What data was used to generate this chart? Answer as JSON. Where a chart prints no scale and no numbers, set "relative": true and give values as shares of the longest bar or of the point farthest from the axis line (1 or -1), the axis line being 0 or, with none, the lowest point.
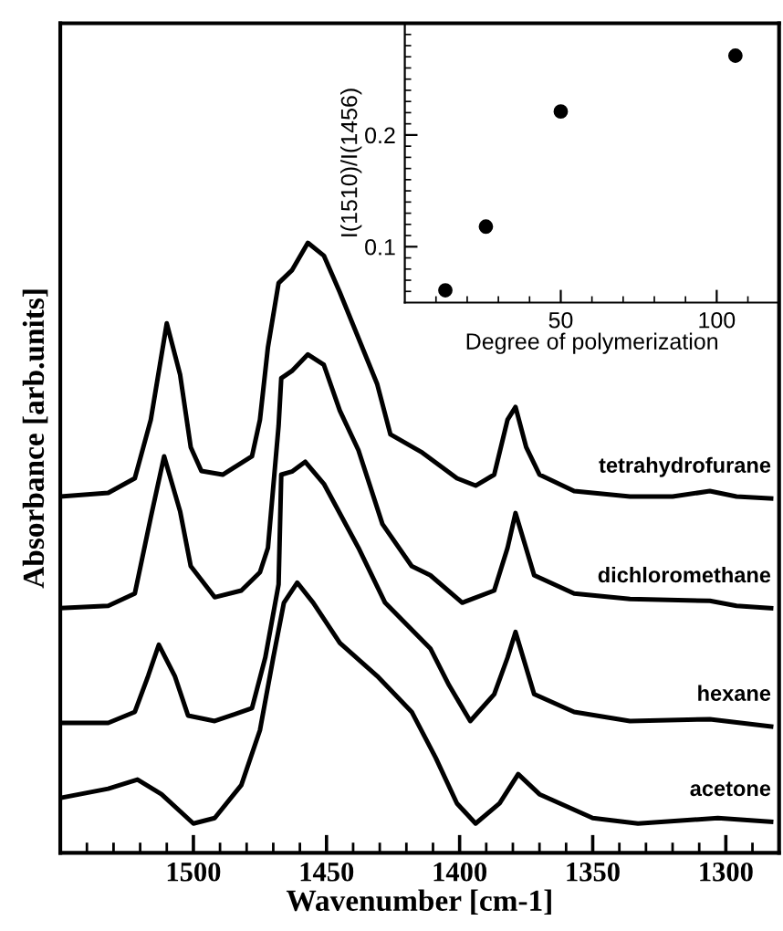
{
  "chart_data": [
    {
      "type": "line",
      "relative": true,
      "xlabel": "Wavenumber [cm-1]",
      "ylabel": "Absorbance [arb.units]",
      "xlim": [
        1550,
        1280
      ],
      "xticks": [
        {
          "value": 1540,
          "label": null
        },
        {
          "value": 1530,
          "label": null
        },
        {
          "value": 1520,
          "label": null
        },
        {
          "value": 1510,
          "label": null
        },
        1500,
        {
          "value": 1490,
          "label": null
        },
        {
          "value": 1480,
          "label": null
        },
        {
          "value": 1470,
          "label": null
        },
        {
          "value": 1460,
          "label": null
        },
        1450,
        {
          "value": 1440,
          "label": null
        },
        {
          "value": 1430,
          "label": null
        },
        {
          "value": 1420,
          "label": null
        },
        {
          "value": 1410,
          "label": null
        },
        1400,
        {
          "value": 1390,
          "label": null
        },
        {
          "value": 1380,
          "label": null
        },
        {
          "value": 1370,
          "label": null
        },
        {
          "value": 1360,
          "label": null
        },
        1350,
        {
          "value": 1340,
          "label": null
        },
        {
          "value": 1330,
          "label": null
        },
        {
          "value": 1320,
          "label": null
        },
        {
          "value": 1310,
          "label": null
        },
        1300,
        {
          "value": 1290,
          "label": null
        }
      ],
      "tick_labels": "x",
      "grid": false,
      "legend": false,
      "marker": "none",
      "line_style": "solid",
      "series": [
        {
          "name": "tetrahydrofurane",
          "color": "#000000",
          "x": [
            1550,
            1532,
            1522,
            1516,
            1510,
            1505,
            1501,
            1497,
            1489,
            1478,
            1475,
            1472,
            1468,
            1463,
            1457,
            1451,
            1445,
            1431,
            1426,
            1414,
            1401,
            1394,
            1387,
            1382,
            1379,
            1375,
            1370,
            1357,
            1336,
            1320,
            1306,
            1296,
            1283
          ],
          "values": [
            0.584,
            0.59,
            0.614,
            0.71,
            0.868,
            0.784,
            0.665,
            0.626,
            0.62,
            0.65,
            0.71,
            0.829,
            0.934,
            0.955,
            1.0,
            0.979,
            0.919,
            0.769,
            0.686,
            0.656,
            0.614,
            0.602,
            0.62,
            0.71,
            0.731,
            0.665,
            0.62,
            0.593,
            0.584,
            0.584,
            0.593,
            0.584,
            0.581
          ]
        },
        {
          "name": "dichloromethane",
          "color": "#000000",
          "x": [
            1550,
            1532,
            1522,
            1516,
            1511,
            1505,
            1501,
            1492,
            1482,
            1475,
            1472,
            1468,
            1467,
            1463,
            1457,
            1451,
            1445,
            1438,
            1429,
            1418,
            1411,
            1399,
            1387,
            1382,
            1379,
            1372,
            1357,
            1336,
            1306,
            1296,
            1283
          ],
          "values": [
            0.401,
            0.405,
            0.425,
            0.55,
            0.65,
            0.56,
            0.47,
            0.419,
            0.43,
            0.46,
            0.5,
            0.7,
            0.778,
            0.79,
            0.817,
            0.8,
            0.725,
            0.66,
            0.539,
            0.47,
            0.455,
            0.41,
            0.43,
            0.5,
            0.557,
            0.455,
            0.425,
            0.416,
            0.413,
            0.405,
            0.401
          ]
        },
        {
          "name": "hexane",
          "color": "#000000",
          "x": [
            1550,
            1532,
            1522,
            1517,
            1513,
            1507,
            1502,
            1492,
            1478,
            1473,
            1468,
            1467,
            1463,
            1458,
            1451,
            1438,
            1428,
            1411,
            1404,
            1396,
            1387,
            1382,
            1379,
            1372,
            1357,
            1336,
            1306,
            1283
          ],
          "values": [
            0.213,
            0.213,
            0.231,
            0.29,
            0.341,
            0.29,
            0.225,
            0.216,
            0.237,
            0.32,
            0.44,
            0.62,
            0.625,
            0.641,
            0.605,
            0.5,
            0.41,
            0.335,
            0.275,
            0.216,
            0.26,
            0.32,
            0.362,
            0.26,
            0.231,
            0.216,
            0.219,
            0.207
          ]
        },
        {
          "name": "acetone",
          "color": "#000000",
          "x": [
            1550,
            1532,
            1521,
            1512,
            1500,
            1492,
            1482,
            1475,
            1470,
            1466,
            1461,
            1455,
            1445,
            1431,
            1418,
            1409,
            1401,
            1394,
            1385,
            1378,
            1370,
            1350,
            1333,
            1303,
            1283
          ],
          "values": [
            0.09,
            0.105,
            0.12,
            0.096,
            0.048,
            0.057,
            0.111,
            0.201,
            0.32,
            0.41,
            0.443,
            0.41,
            0.344,
            0.29,
            0.231,
            0.156,
            0.081,
            0.048,
            0.081,
            0.129,
            0.096,
            0.057,
            0.048,
            0.057,
            0.051
          ]
        }
      ]
    },
    {
      "type": "scatter",
      "xlabel": "Degree of polymerization",
      "ylabel": "I(1510)/I(1456)",
      "xlim": [
        0,
        120
      ],
      "ylim": [
        0.05,
        0.3
      ],
      "xticks": [
        {
          "value": 10,
          "label": null
        },
        {
          "value": 20,
          "label": null
        },
        {
          "value": 30,
          "label": null
        },
        {
          "value": 40,
          "label": null
        },
        50,
        {
          "value": 60,
          "label": null
        },
        {
          "value": 70,
          "label": null
        },
        {
          "value": 80,
          "label": null
        },
        {
          "value": 90,
          "label": null
        },
        100,
        {
          "value": 110,
          "label": null
        }
      ],
      "yticks": [
        {
          "value": 0.06,
          "label": null
        },
        {
          "value": 0.07,
          "label": null
        },
        {
          "value": 0.08,
          "label": null
        },
        {
          "value": 0.09,
          "label": null
        },
        0.1,
        {
          "value": 0.11,
          "label": null
        },
        {
          "value": 0.12,
          "label": null
        },
        {
          "value": 0.13,
          "label": null
        },
        {
          "value": 0.14,
          "label": null
        },
        {
          "value": 0.15,
          "label": null
        },
        {
          "value": 0.16,
          "label": null
        },
        {
          "value": 0.17,
          "label": null
        },
        {
          "value": 0.18,
          "label": null
        },
        {
          "value": 0.19,
          "label": null
        },
        0.2,
        {
          "value": 0.21,
          "label": null
        },
        {
          "value": 0.22,
          "label": null
        },
        {
          "value": 0.23,
          "label": null
        },
        {
          "value": 0.24,
          "label": null
        },
        {
          "value": 0.25,
          "label": null
        },
        {
          "value": 0.26,
          "label": null
        },
        {
          "value": 0.27,
          "label": null
        },
        {
          "value": 0.28,
          "label": null
        },
        {
          "value": 0.29,
          "label": null
        }
      ],
      "grid": false,
      "legend": false,
      "marker": "circle",
      "series": [
        {
          "color": "#000000",
          "x": [
            13,
            26,
            50,
            106
          ],
          "values": [
            0.061,
            0.118,
            0.221,
            0.271
          ]
        }
      ]
    }
  ]
}
